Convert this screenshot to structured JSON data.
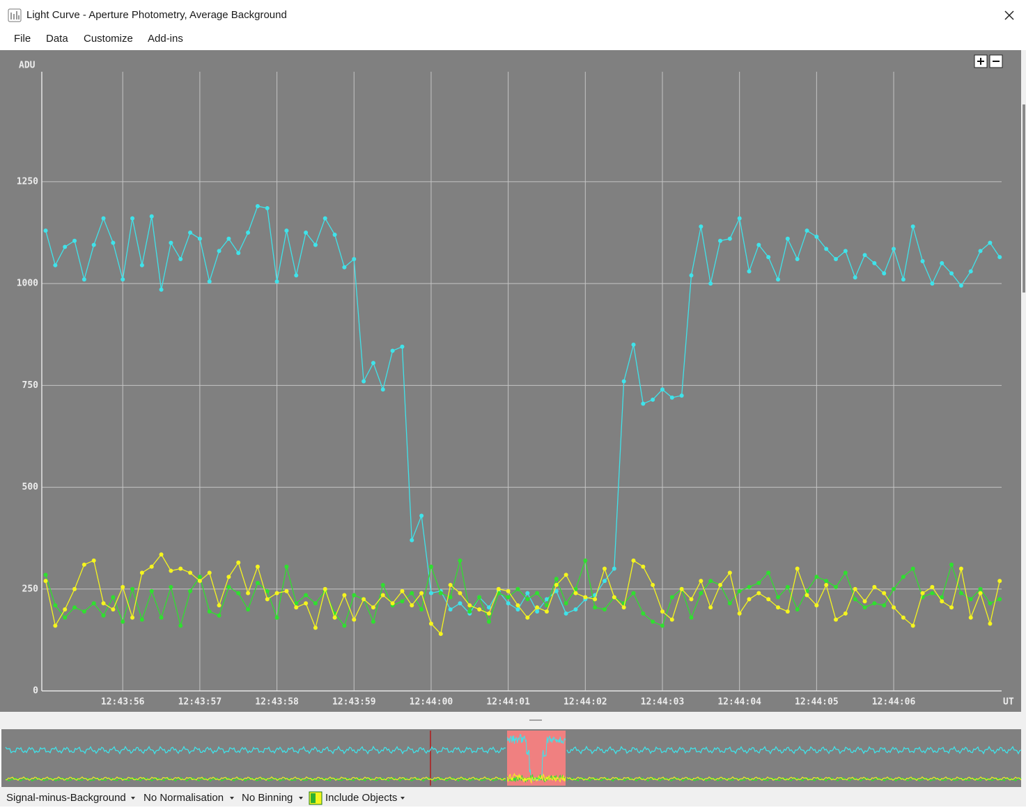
{
  "window": {
    "title": "Light Curve - Aperture Photometry, Average Background",
    "menu": [
      "File",
      "Data",
      "Customize",
      "Add-ins"
    ]
  },
  "chart_data": {
    "type": "line",
    "y_label": "ADU",
    "x_label": "UT",
    "x": [
      55,
      55.125,
      55.25,
      55.375,
      55.5,
      55.625,
      55.75,
      55.875,
      56,
      56.125,
      56.25,
      56.375,
      56.5,
      56.625,
      56.75,
      56.875,
      57,
      57.125,
      57.25,
      57.375,
      57.5,
      57.625,
      57.75,
      57.875,
      58,
      58.125,
      58.25,
      58.375,
      58.5,
      58.625,
      58.75,
      58.875,
      59,
      59.125,
      59.25,
      59.375,
      59.5,
      59.625,
      59.75,
      59.875,
      60,
      60.125,
      60.25,
      60.375,
      60.5,
      60.625,
      60.75,
      60.875,
      61,
      61.125,
      61.25,
      61.375,
      61.5,
      61.625,
      61.75,
      61.875,
      62,
      62.125,
      62.25,
      62.375,
      62.5,
      62.625,
      62.75,
      62.875,
      63,
      63.125,
      63.25,
      63.375,
      63.5,
      63.625,
      63.75,
      63.875,
      64,
      64.125,
      64.25,
      64.375,
      64.5,
      64.625,
      64.75,
      64.875,
      65,
      65.125,
      65.25,
      65.375,
      65.5,
      65.625,
      65.75,
      65.875,
      66,
      66.125,
      66.25,
      66.375,
      66.5,
      66.625,
      66.75,
      66.875,
      67,
      67.125,
      67.25,
      67.375
    ],
    "series": [
      {
        "color": "#3fe3ea",
        "values": [
          1130,
          1045,
          1090,
          1105,
          1010,
          1095,
          1160,
          1100,
          1010,
          1160,
          1045,
          1165,
          985,
          1100,
          1060,
          1125,
          1110,
          1005,
          1080,
          1110,
          1075,
          1125,
          1190,
          1185,
          1005,
          1130,
          1020,
          1125,
          1095,
          1160,
          1120,
          1040,
          1060,
          760,
          805,
          740,
          835,
          845,
          370,
          430,
          240,
          245,
          200,
          215,
          190,
          230,
          205,
          245,
          215,
          200,
          240,
          195,
          225,
          245,
          190,
          200,
          225,
          235,
          270,
          300,
          760,
          850,
          705,
          715,
          740,
          720,
          725,
          1020,
          1140,
          1000,
          1105,
          1110,
          1160,
          1030,
          1095,
          1065,
          1010,
          1110,
          1060,
          1130,
          1115,
          1085,
          1060,
          1080,
          1015,
          1070,
          1050,
          1025,
          1085,
          1010,
          1140,
          1055,
          1000,
          1050,
          1025,
          995,
          1030,
          1080,
          1100,
          1065
        ]
      },
      {
        "color": "#2fe02f",
        "values": [
          285,
          210,
          180,
          205,
          195,
          215,
          185,
          230,
          170,
          250,
          175,
          245,
          180,
          255,
          160,
          245,
          280,
          195,
          185,
          255,
          240,
          200,
          265,
          245,
          180,
          305,
          215,
          235,
          215,
          245,
          190,
          160,
          235,
          225,
          170,
          260,
          210,
          220,
          240,
          200,
          305,
          240,
          230,
          320,
          195,
          230,
          170,
          240,
          230,
          250,
          225,
          240,
          210,
          275,
          215,
          250,
          320,
          205,
          200,
          230,
          215,
          240,
          190,
          170,
          160,
          230,
          250,
          180,
          240,
          270,
          260,
          215,
          245,
          255,
          265,
          290,
          230,
          255,
          200,
          245,
          280,
          270,
          255,
          290,
          225,
          205,
          215,
          210,
          250,
          280,
          300,
          230,
          240,
          230,
          310,
          240,
          225,
          250,
          215,
          225
        ]
      },
      {
        "color": "#f5f51e",
        "values": [
          270,
          160,
          200,
          250,
          310,
          320,
          215,
          200,
          255,
          180,
          290,
          305,
          335,
          295,
          300,
          290,
          270,
          290,
          210,
          280,
          315,
          240,
          305,
          225,
          240,
          245,
          205,
          215,
          155,
          250,
          180,
          235,
          175,
          225,
          205,
          235,
          215,
          245,
          210,
          240,
          165,
          140,
          260,
          240,
          210,
          200,
          190,
          250,
          245,
          210,
          180,
          205,
          195,
          260,
          285,
          240,
          230,
          225,
          300,
          230,
          205,
          320,
          305,
          260,
          195,
          175,
          250,
          225,
          270,
          205,
          260,
          290,
          190,
          225,
          240,
          225,
          205,
          195,
          300,
          235,
          210,
          260,
          175,
          190,
          250,
          220,
          255,
          240,
          205,
          180,
          160,
          240,
          255,
          220,
          205,
          300,
          180,
          240,
          165,
          270
        ]
      }
    ],
    "xlim": [
      54.95,
      67.4
    ],
    "ylim": [
      0,
      1520
    ],
    "xticks": [
      {
        "value": 56,
        "label": "12:43:56"
      },
      {
        "value": 57,
        "label": "12:43:57"
      },
      {
        "value": 58,
        "label": "12:43:58"
      },
      {
        "value": 59,
        "label": "12:43:59"
      },
      {
        "value": 60,
        "label": "12:44:00"
      },
      {
        "value": 61,
        "label": "12:44:01"
      },
      {
        "value": 62,
        "label": "12:44:02"
      },
      {
        "value": 63,
        "label": "12:44:03"
      },
      {
        "value": 64,
        "label": "12:44:04"
      },
      {
        "value": 65,
        "label": "12:44:05"
      },
      {
        "value": 66,
        "label": "12:44:06"
      }
    ],
    "yticks": [
      0,
      250,
      500,
      750,
      1000,
      1250
    ],
    "grid": true
  },
  "toolbar": {
    "items": [
      "Signal-minus-Background",
      "No Normalisation",
      "No Binning",
      "Include Objects"
    ]
  }
}
